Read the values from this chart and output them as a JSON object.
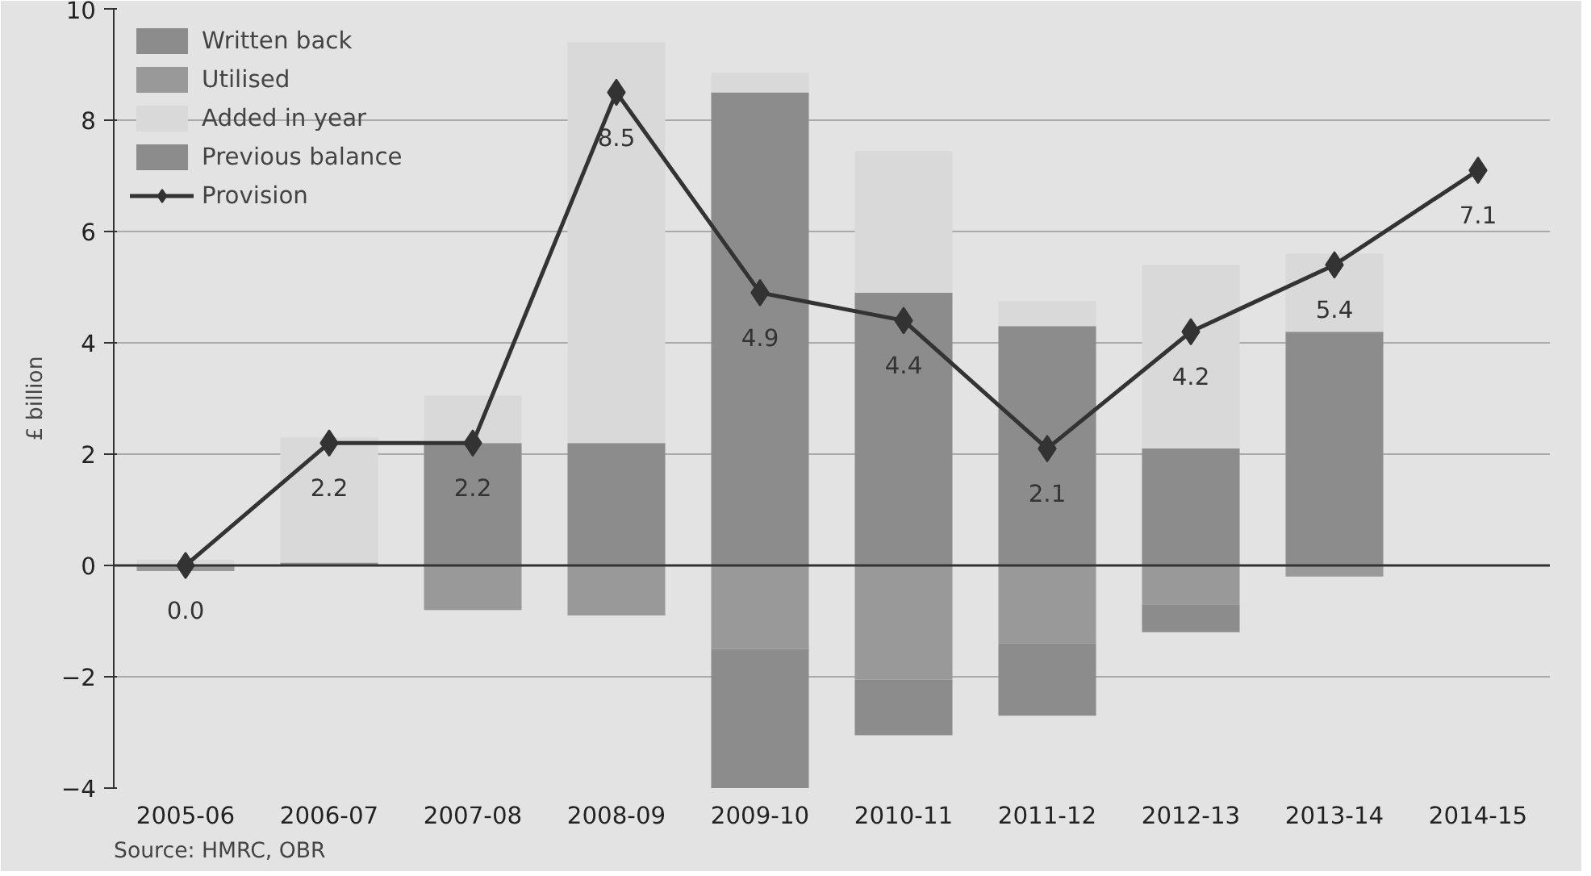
{
  "chart_data": {
    "type": "bar",
    "stacked": true,
    "ylabel": "£ billion",
    "categories": [
      "2005-06",
      "2006-07",
      "2007-08",
      "2008-09",
      "2009-10",
      "2010-11",
      "2011-12",
      "2012-13",
      "2013-14",
      "2014-15"
    ],
    "series": [
      {
        "name": "Previous balance",
        "color": "#8c8c8c",
        "values": [
          null,
          0.05,
          2.2,
          2.2,
          8.5,
          4.9,
          4.3,
          2.1,
          4.2,
          null
        ]
      },
      {
        "name": "Added in year",
        "color": "#d9d9d9",
        "values": [
          0.1,
          2.25,
          0.85,
          7.2,
          0.35,
          2.55,
          0.45,
          3.3,
          1.4,
          null
        ]
      },
      {
        "name": "Utilised",
        "color": "#999999",
        "values": [
          -0.1,
          null,
          -0.8,
          -0.9,
          -1.5,
          -2.05,
          -1.4,
          -0.7,
          -0.2,
          null
        ]
      },
      {
        "name": "Written back",
        "color": "#8c8c8c",
        "values": [
          null,
          null,
          null,
          null,
          -2.5,
          -1.0,
          -1.3,
          -0.5,
          null,
          null
        ]
      },
      {
        "name": "Provision",
        "type": "line",
        "color": "#333333",
        "marker": "diamond",
        "values": [
          0.0,
          2.2,
          2.2,
          8.5,
          4.9,
          4.4,
          2.1,
          4.2,
          5.4,
          7.1
        ],
        "value_labels": [
          "0.0",
          "2.2",
          "2.2",
          "8.5",
          "4.9",
          "4.4",
          "2.1",
          "4.2",
          "5.4",
          "7.1"
        ]
      }
    ],
    "ylim": [
      -4,
      10
    ],
    "yticks": [
      -4,
      -2,
      0,
      2,
      4,
      6,
      8,
      10
    ],
    "grid": "y",
    "legend": "top left",
    "annotations": [
      "Source: HMRC, OBR"
    ]
  }
}
